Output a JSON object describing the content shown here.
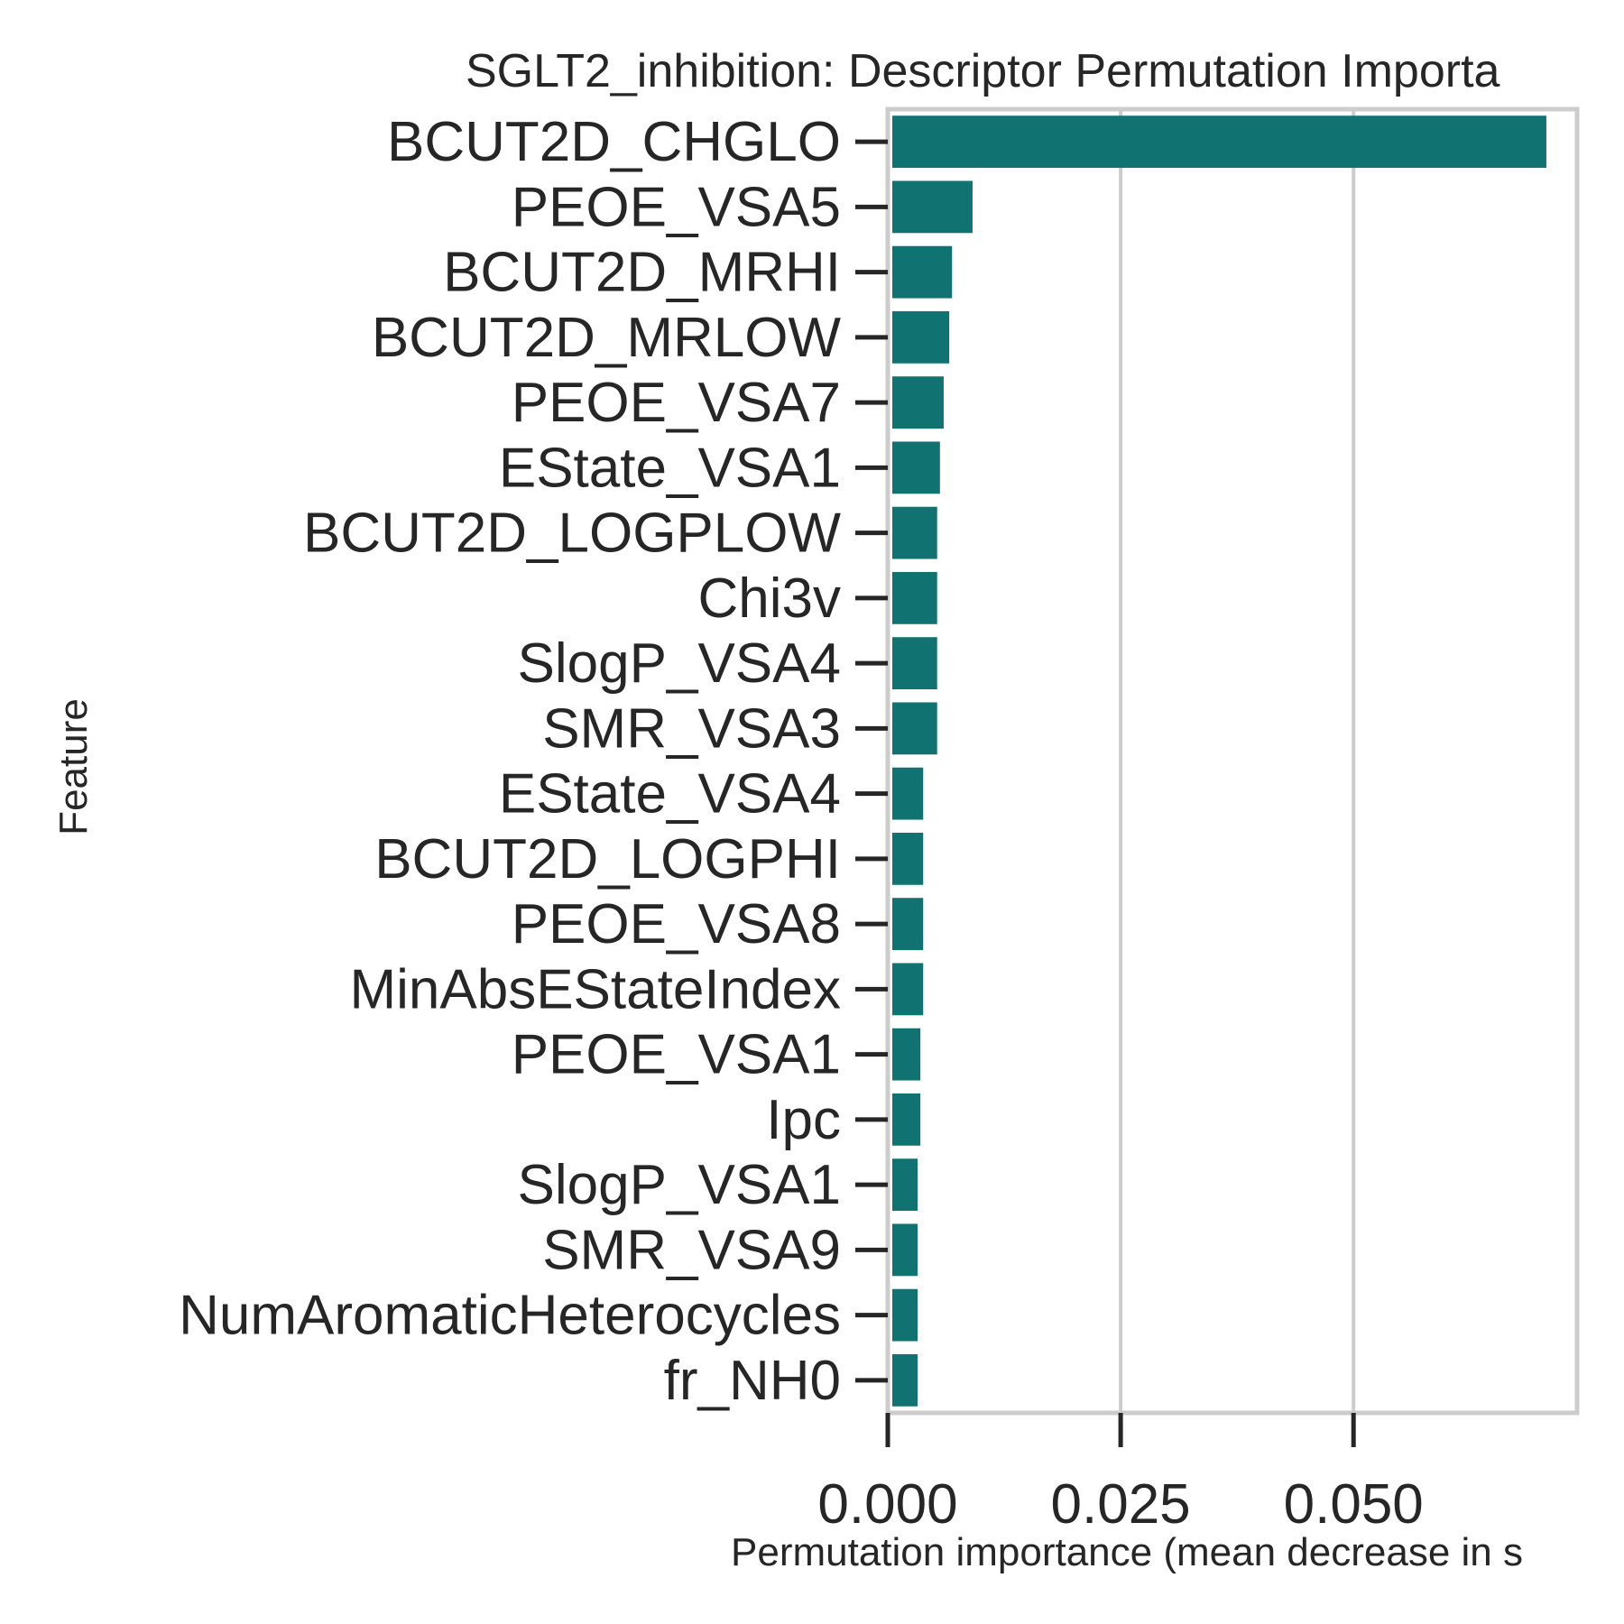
{
  "chart_data": {
    "type": "bar",
    "orientation": "horizontal",
    "title": "SGLT2_inhibition: Descriptor Permutation Importa",
    "xlabel": "Permutation importance (mean decrease in s",
    "ylabel": "Feature",
    "xlim": [
      0,
      0.074
    ],
    "xticks": [
      0.0,
      0.025,
      0.05
    ],
    "xtick_labels": [
      "0.000",
      "0.025",
      "0.050"
    ],
    "grid": "vertical",
    "bar_color": "#107271",
    "categories": [
      "BCUT2D_CHGLO",
      "PEOE_VSA5",
      "BCUT2D_MRHI",
      "BCUT2D_MRLOW",
      "PEOE_VSA7",
      "EState_VSA1",
      "BCUT2D_LOGPLOW",
      "Chi3v",
      "SlogP_VSA4",
      "SMR_VSA3",
      "EState_VSA4",
      "BCUT2D_LOGPHI",
      "PEOE_VSA8",
      "MinAbsEStateIndex",
      "PEOE_VSA1",
      "Ipc",
      "SlogP_VSA1",
      "SMR_VSA9",
      "NumAromaticHeterocycles",
      "fr_NH0"
    ],
    "values": [
      0.0707,
      0.0091,
      0.0069,
      0.0066,
      0.006,
      0.0056,
      0.0053,
      0.0053,
      0.0053,
      0.0053,
      0.0038,
      0.0038,
      0.0038,
      0.0038,
      0.0035,
      0.0035,
      0.0032,
      0.0032,
      0.0032,
      0.0032
    ]
  }
}
